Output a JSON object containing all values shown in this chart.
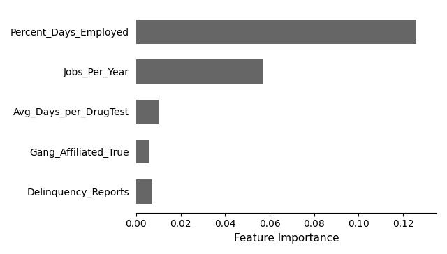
{
  "categories": [
    "Delinquency_Reports",
    "Gang_Affiliated_True",
    "Avg_Days_per_DrugTest",
    "Jobs_Per_Year",
    "Percent_Days_Employed"
  ],
  "values": [
    0.007,
    0.006,
    0.01,
    0.057,
    0.126
  ],
  "bar_color": "#666666",
  "xlabel": "Feature Importance",
  "xlim": [
    0,
    0.135
  ],
  "xticks": [
    0.0,
    0.02,
    0.04,
    0.06,
    0.08,
    0.1,
    0.12
  ],
  "title": "",
  "figsize": [
    6.4,
    3.64
  ],
  "dpi": 100
}
